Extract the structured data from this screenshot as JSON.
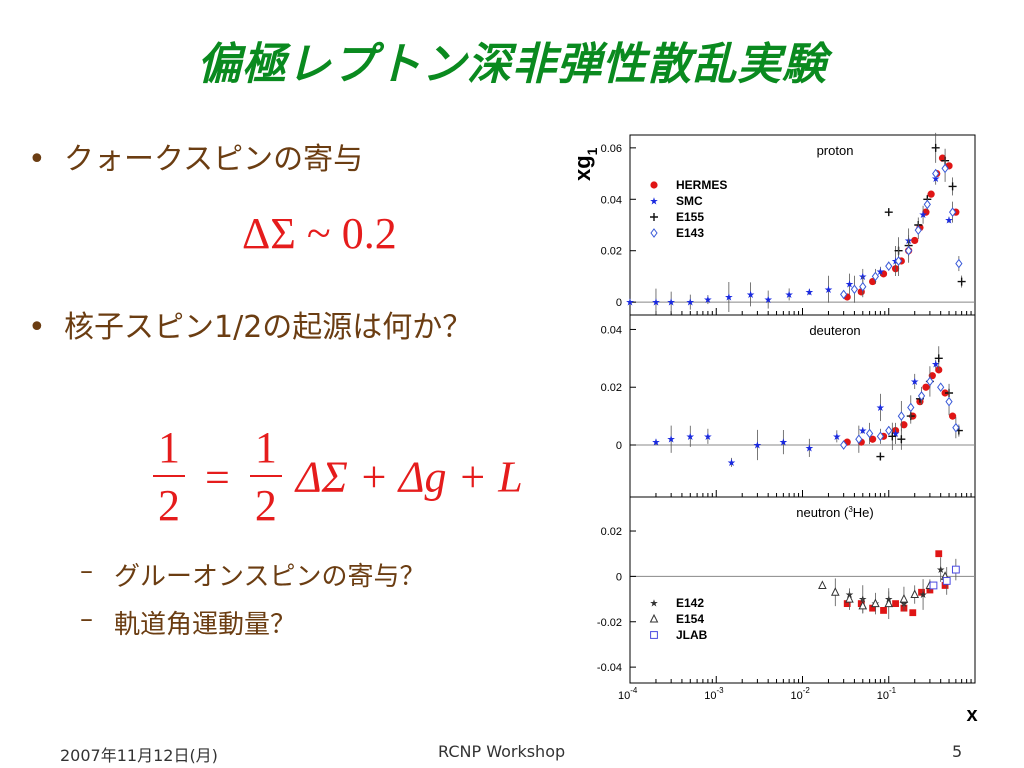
{
  "title": "偏極レプトン深非弾性散乱実験",
  "bullets": [
    {
      "text": "クォークスピンの寄与"
    },
    {
      "text": "核子スピン1/2の起源は何か？"
    }
  ],
  "formula1": "ΔΣ ~ 0.2",
  "formula2": {
    "half_num": "1",
    "half_den": "2",
    "rhs": "= ",
    "rhs_frac_num": "1",
    "rhs_frac_den": "2",
    "terms": "ΔΣ + Δg + L"
  },
  "sub_items": [
    "グルーオンスピンの寄与？",
    "軌道角運動量？"
  ],
  "bullet_char": "•",
  "dash_char": "–",
  "footer": {
    "date": "2007年11月12日(月)",
    "event": "RCNP Workshop",
    "page": "5"
  },
  "colors": {
    "title": "#0a8a1f",
    "text": "#6b3d12",
    "formula": "#e51c1c",
    "hermes": "#e01515",
    "smc": "#1a2ae0",
    "e143": "#3a5ad8",
    "jlab": "#4a4ae0"
  },
  "chart_data": {
    "type": "scatter",
    "ylabel_main": "xg",
    "ylabel_sub": "1",
    "xlabel": "x",
    "x_scale": "log",
    "xlim": [
      0.0001,
      1
    ],
    "x_tick_labels": [
      {
        "base": "10",
        "exp": "-4"
      },
      {
        "base": "10",
        "exp": "-3"
      },
      {
        "base": "10",
        "exp": "-2"
      },
      {
        "base": "10",
        "exp": "-1"
      }
    ],
    "panels": [
      {
        "name": "proton",
        "ylim": [
          -0.005,
          0.065
        ],
        "yticks": [
          0,
          0.02,
          0.04,
          0.06
        ],
        "ytick_labels": [
          "0",
          "0.02",
          "0.04",
          "0.06"
        ],
        "legend": [
          "HERMES",
          "SMC",
          "E155",
          "E143"
        ],
        "legend_position": "top-left",
        "series": [
          {
            "name": "HERMES",
            "marker": "circle",
            "x": [
              0.033,
              0.048,
              0.065,
              0.087,
              0.12,
              0.14,
              0.17,
              0.2,
              0.23,
              0.27,
              0.31,
              0.36,
              0.42,
              0.5,
              0.6
            ],
            "y": [
              0.002,
              0.004,
              0.008,
              0.011,
              0.013,
              0.016,
              0.02,
              0.024,
              0.029,
              0.035,
              0.042,
              0.05,
              0.056,
              0.053,
              0.035
            ]
          },
          {
            "name": "SMC",
            "marker": "star",
            "x": [
              0.0001,
              0.0002,
              0.0003,
              0.0005,
              0.0008,
              0.0014,
              0.0025,
              0.004,
              0.007,
              0.012,
              0.02,
              0.035,
              0.05,
              0.08,
              0.12,
              0.17,
              0.25,
              0.35,
              0.5
            ],
            "y": [
              0.0,
              0.0,
              0.0,
              0.0,
              0.001,
              0.002,
              0.003,
              0.001,
              0.003,
              0.004,
              0.005,
              0.007,
              0.01,
              0.012,
              0.016,
              0.024,
              0.034,
              0.048,
              0.032
            ]
          },
          {
            "name": "E155",
            "marker": "cross",
            "x": [
              0.1,
              0.13,
              0.17,
              0.22,
              0.28,
              0.35,
              0.45,
              0.55,
              0.7
            ],
            "y": [
              0.035,
              0.02,
              0.022,
              0.03,
              0.04,
              0.06,
              0.055,
              0.045,
              0.008
            ]
          },
          {
            "name": "E143",
            "marker": "diamond",
            "x": [
              0.03,
              0.04,
              0.05,
              0.07,
              0.1,
              0.13,
              0.17,
              0.22,
              0.28,
              0.35,
              0.45,
              0.55,
              0.65
            ],
            "y": [
              0.003,
              0.005,
              0.006,
              0.01,
              0.014,
              0.016,
              0.02,
              0.028,
              0.038,
              0.05,
              0.052,
              0.035,
              0.015
            ]
          }
        ]
      },
      {
        "name": "deuteron",
        "ylim": [
          -0.018,
          0.045
        ],
        "yticks": [
          0,
          0.02,
          0.04
        ],
        "ytick_labels": [
          "0",
          "0.02",
          "0.04"
        ],
        "series": [
          {
            "name": "HERMES",
            "marker": "circle",
            "x": [
              0.033,
              0.048,
              0.065,
              0.087,
              0.12,
              0.15,
              0.19,
              0.23,
              0.27,
              0.32,
              0.38,
              0.45,
              0.55
            ],
            "y": [
              0.001,
              0.001,
              0.002,
              0.003,
              0.005,
              0.007,
              0.01,
              0.015,
              0.02,
              0.024,
              0.026,
              0.018,
              0.01
            ]
          },
          {
            "name": "SMC",
            "marker": "star",
            "x": [
              0.0002,
              0.0003,
              0.0005,
              0.0008,
              0.0015,
              0.003,
              0.006,
              0.012,
              0.025,
              0.05,
              0.08,
              0.12,
              0.2,
              0.35
            ],
            "y": [
              0.001,
              0.002,
              0.003,
              0.003,
              -0.006,
              0.0,
              0.001,
              -0.001,
              0.003,
              0.005,
              0.013,
              0.004,
              0.022,
              0.028
            ]
          },
          {
            "name": "E155",
            "marker": "cross",
            "x": [
              0.08,
              0.11,
              0.14,
              0.18,
              0.23,
              0.3,
              0.38,
              0.5,
              0.65
            ],
            "y": [
              -0.004,
              0.003,
              0.002,
              0.01,
              0.016,
              0.022,
              0.03,
              0.018,
              0.005
            ]
          },
          {
            "name": "E143",
            "marker": "diamond",
            "x": [
              0.03,
              0.045,
              0.06,
              0.08,
              0.1,
              0.14,
              0.18,
              0.24,
              0.3,
              0.4,
              0.5,
              0.6
            ],
            "y": [
              0.0,
              0.002,
              0.004,
              0.003,
              0.005,
              0.01,
              0.013,
              0.017,
              0.022,
              0.02,
              0.015,
              0.006
            ]
          }
        ]
      },
      {
        "name": "neutron (3He)",
        "label_main": "neutron (",
        "label_sup": "3",
        "label_end": "He)",
        "ylim": [
          -0.047,
          0.035
        ],
        "yticks": [
          -0.04,
          -0.02,
          0,
          0.02
        ],
        "ytick_labels": [
          "-0.04",
          "-0.02",
          "0",
          "0.02"
        ],
        "legend": [
          "E142",
          "E154",
          "JLAB"
        ],
        "legend_position": "bottom-left",
        "series": [
          {
            "name": "HERMES",
            "marker": "square",
            "x": [
              0.033,
              0.048,
              0.065,
              0.087,
              0.12,
              0.15,
              0.19,
              0.24,
              0.3,
              0.38,
              0.45
            ],
            "y": [
              -0.012,
              -0.012,
              -0.014,
              -0.015,
              -0.012,
              -0.014,
              -0.016,
              -0.007,
              -0.006,
              0.01,
              -0.004
            ]
          },
          {
            "name": "E142",
            "marker": "star",
            "x": [
              0.035,
              0.05,
              0.07,
              0.1,
              0.15,
              0.25,
              0.4
            ],
            "y": [
              -0.008,
              -0.01,
              -0.012,
              -0.01,
              -0.012,
              -0.008,
              0.003
            ]
          },
          {
            "name": "E154",
            "marker": "triangle",
            "x": [
              0.017,
              0.024,
              0.035,
              0.05,
              0.07,
              0.1,
              0.15,
              0.2,
              0.3,
              0.45
            ],
            "y": [
              -0.004,
              -0.007,
              -0.01,
              -0.013,
              -0.012,
              -0.012,
              -0.01,
              -0.008,
              -0.004,
              0.0
            ]
          },
          {
            "name": "JLAB",
            "marker": "square-open",
            "x": [
              0.33,
              0.47,
              0.6
            ],
            "y": [
              -0.004,
              -0.002,
              0.003
            ]
          }
        ]
      }
    ]
  }
}
